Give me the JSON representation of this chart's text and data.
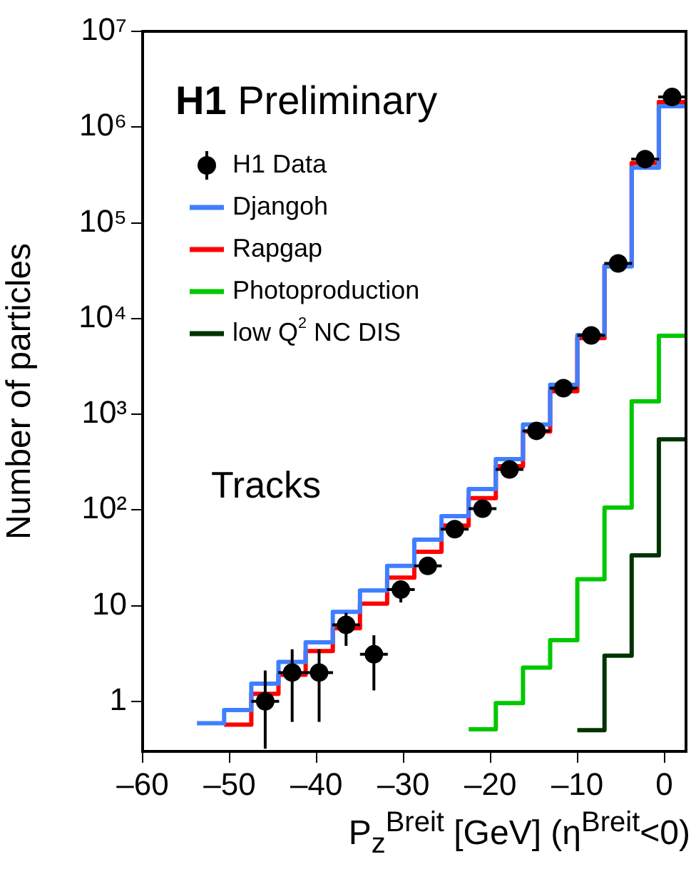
{
  "chart_data": {
    "type": "step",
    "title": "H1 Preliminary",
    "xlabel": "P$_{z}$$^{Breit}$ [GeV] (η$^{Breit}$<0)",
    "ylabel": "Number of particles",
    "annotations": [
      "Tracks"
    ],
    "xlim": [
      -60,
      2.5
    ],
    "xticks": [
      {
        "value": -60,
        "label": "–60"
      },
      {
        "value": -50,
        "label": "–50"
      },
      {
        "value": -40,
        "label": "–40"
      },
      {
        "value": -30,
        "label": "–30"
      },
      {
        "value": -20,
        "label": "–20"
      },
      {
        "value": -10,
        "label": "–10"
      },
      0
    ],
    "ylim": [
      0.32,
      10000000
    ],
    "yticks": [
      1,
      10,
      {
        "value": 100,
        "label": "10²"
      },
      {
        "value": 1000,
        "label": "10³"
      },
      {
        "value": 10000,
        "label": "10⁴"
      },
      {
        "value": 100000,
        "label": "10⁵"
      },
      {
        "value": 1000000,
        "label": "10⁶"
      },
      {
        "value": 10000000,
        "label": "10⁷"
      }
    ],
    "log": true,
    "legend": "top left",
    "series": [
      {
        "name": "H1 Data",
        "type": "scatter",
        "marker": "circle",
        "color": "#000000",
        "x": [
          -45.9,
          -42.8,
          -39.7,
          -36.6,
          -33.4,
          -30.3,
          -27.2,
          -24.1,
          -20.9,
          -17.8,
          -14.7,
          -11.6,
          -8.4,
          -5.3,
          -2.2,
          0.9
        ],
        "values": [
          1.0,
          2.0,
          2.0,
          6.3,
          3.1,
          14.7,
          26,
          63,
          103,
          265,
          670,
          1870,
          6650,
          37600,
          463000,
          2060000
        ],
        "errors": [
          [
            0.32,
            2.1
          ],
          [
            0.61,
            3.5
          ],
          [
            0.61,
            3.5
          ],
          [
            3.8,
            8.4
          ],
          [
            1.3,
            4.9
          ],
          [
            10.8,
            17.1
          ],
          null,
          null,
          null,
          null,
          null,
          null,
          null,
          null,
          null,
          null
        ],
        "xerrors": [
          1.6,
          1.6,
          1.6,
          1.6,
          1.6,
          1.6,
          1.6,
          1.6,
          1.6,
          1.6,
          1.6,
          1.6,
          1.6,
          1.6,
          1.6,
          1.6
        ]
      },
      {
        "name": "Djangoh",
        "color": "#3f7fff",
        "x": [
          -53.75,
          -50.625,
          -47.5,
          -44.375,
          -41.25,
          -38.125,
          -35,
          -31.875,
          -28.75,
          -25.625,
          -22.5,
          -19.375,
          -16.25,
          -13.125,
          -10,
          -6.875,
          -3.75,
          -0.625,
          2.5
        ],
        "values": [
          0.59,
          0.81,
          1.53,
          2.58,
          4.13,
          8.6,
          14.4,
          26,
          49,
          86,
          165,
          340,
          780,
          2030,
          6700,
          35000,
          377000,
          1650000,
          1650000
        ]
      },
      {
        "name": "Rapgap",
        "color": "#ff0000",
        "x": [
          -50.625,
          -47.5,
          -44.375,
          -41.25,
          -38.125,
          -35,
          -31.875,
          -28.75,
          -25.625,
          -22.5,
          -19.375,
          -16.25,
          -13.125,
          -10,
          -6.875,
          -3.75,
          -0.625,
          2.5
        ],
        "values": [
          0.57,
          1.2,
          1.9,
          3.36,
          5.8,
          10.5,
          19.6,
          36.6,
          68.7,
          133,
          286,
          660,
          1740,
          6250,
          35500,
          420000,
          1830000,
          1830000
        ]
      },
      {
        "name": "Photoproduction",
        "color": "#00c800",
        "x": [
          -22.5,
          -19.375,
          -16.25,
          -13.125,
          -10,
          -6.875,
          -3.75,
          -0.625,
          2.5
        ],
        "values": [
          0.51,
          0.96,
          2.25,
          4.36,
          18.9,
          106,
          1360,
          6600,
          6600
        ]
      },
      {
        "name": "low Q$^{2}$ NC DIS",
        "color": "#003300",
        "x": [
          -10,
          -6.875,
          -3.75,
          -0.625,
          2.5
        ],
        "values": [
          0.5,
          3.0,
          33.5,
          546,
          546
        ]
      }
    ]
  }
}
